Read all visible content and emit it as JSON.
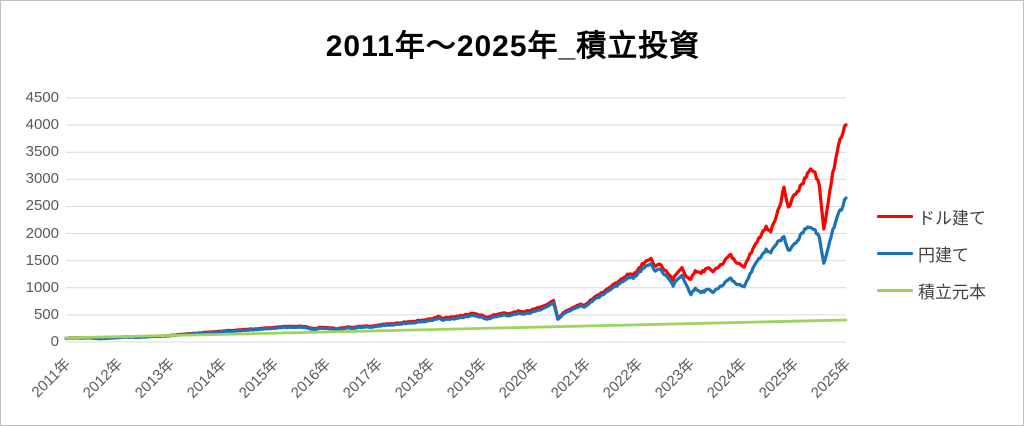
{
  "title": "2011年～2025年_積立投資",
  "colors": {
    "dollar": "#ff0000",
    "yen": "#1a72b8",
    "principal": "#9cd45e",
    "grid": "#d9d9d9",
    "axis_text": "#595959",
    "legend_text": "#404040"
  },
  "legend": [
    {
      "key": "dollar",
      "label": "ドル建て"
    },
    {
      "key": "yen",
      "label": "円建て"
    },
    {
      "key": "principal",
      "label": "積立元本"
    }
  ],
  "chart_data": {
    "type": "line",
    "title": "2011年～2025年_積立投資",
    "x_unit": "month",
    "x_start": "2011-01",
    "x_tick_labels": [
      "2011年",
      "2012年",
      "2013年",
      "2014年",
      "2015年",
      "2016年",
      "2017年",
      "2018年",
      "2019年",
      "2020年",
      "2021年",
      "2022年",
      "2023年",
      "2024年",
      "2025年",
      "2025年"
    ],
    "y_ticks": [
      0,
      500,
      1000,
      1500,
      2000,
      2500,
      3000,
      3500,
      4000,
      4500
    ],
    "ylim": [
      0,
      4500
    ],
    "grid": true,
    "legend_position": "right",
    "series": [
      {
        "key": "dollar",
        "name": "ドル建て",
        "color": "#ff0000",
        "values": [
          72,
          75,
          78,
          74,
          77,
          80,
          76,
          70,
          65,
          70,
          76,
          82,
          86,
          92,
          96,
          93,
          90,
          94,
          99,
          104,
          108,
          106,
          111,
          117,
          125,
          133,
          140,
          147,
          154,
          160,
          166,
          173,
          179,
          186,
          193,
          200,
          206,
          212,
          217,
          222,
          228,
          234,
          239,
          245,
          252,
          258,
          265,
          272,
          277,
          283,
          290,
          285,
          292,
          287,
          281,
          262,
          248,
          264,
          270,
          266,
          260,
          245,
          263,
          271,
          277,
          269,
          283,
          291,
          296,
          294,
          308,
          320,
          328,
          336,
          344,
          352,
          361,
          370,
          379,
          388,
          398,
          408,
          419,
          432,
          475,
          440,
          450,
          458,
          472,
          486,
          498,
          515,
          532,
          505,
          485,
          448,
          480,
          505,
          520,
          535,
          518,
          550,
          568,
          556,
          576,
          592,
          615,
          640,
          668,
          720,
          762,
          440,
          520,
          570,
          610,
          650,
          700,
          672,
          742,
          812,
          860,
          910,
          968,
          1026,
          1084,
          1135,
          1205,
          1262,
          1235,
          1322,
          1425,
          1482,
          1525,
          1385,
          1455,
          1335,
          1235,
          1155,
          1285,
          1385,
          1195,
          1165,
          1305,
          1265,
          1315,
          1365,
          1295,
          1375,
          1435,
          1535,
          1595,
          1495,
          1435,
          1395,
          1555,
          1705,
          1855,
          2005,
          2125,
          2045,
          2255,
          2505,
          2825,
          2485,
          2655,
          2765,
          2905,
          3055,
          3225,
          3145,
          2855,
          2085,
          2605,
          3105,
          3505,
          3805,
          4005
        ]
      },
      {
        "key": "yen",
        "name": "円建て",
        "color": "#1a72b8",
        "values": [
          70,
          72,
          75,
          71,
          74,
          76,
          72,
          66,
          61,
          66,
          72,
          78,
          82,
          87,
          91,
          88,
          85,
          89,
          94,
          99,
          103,
          101,
          106,
          112,
          119,
          126,
          133,
          139,
          146,
          151,
          157,
          163,
          169,
          175,
          182,
          188,
          193,
          198,
          203,
          208,
          213,
          219,
          224,
          230,
          236,
          242,
          249,
          255,
          260,
          266,
          272,
          267,
          274,
          269,
          263,
          246,
          233,
          248,
          254,
          250,
          244,
          230,
          247,
          254,
          260,
          252,
          266,
          273,
          278,
          276,
          289,
          300,
          307,
          314,
          321,
          329,
          337,
          345,
          354,
          362,
          371,
          380,
          390,
          402,
          440,
          408,
          417,
          424,
          437,
          450,
          461,
          477,
          492,
          467,
          449,
          415,
          444,
          467,
          481,
          495,
          479,
          509,
          526,
          514,
          533,
          548,
          569,
          592,
          630,
          680,
          718,
          425,
          498,
          545,
          583,
          620,
          668,
          641,
          708,
          774,
          818,
          866,
          920,
          975,
          1030,
          1078,
          1144,
          1198,
          1172,
          1254,
          1348,
          1392,
          1428,
          1300,
          1362,
          1250,
          1155,
          1040,
          1160,
          1240,
          1048,
          880,
          985,
          915,
          935,
          972,
          912,
          990,
          1040,
          1118,
          1165,
          1090,
          1052,
          1030,
          1185,
          1350,
          1495,
          1600,
          1705,
          1655,
          1782,
          1880,
          1922,
          1690,
          1765,
          1855,
          2005,
          2102,
          2140,
          2082,
          1905,
          1455,
          1755,
          2055,
          2305,
          2455,
          2655
        ]
      },
      {
        "key": "principal",
        "name": "積立元本",
        "color": "#9cd45e",
        "values_yearly": [
          75,
          97,
          119,
          141,
          163,
          185,
          207,
          229,
          251,
          273,
          295,
          317,
          339,
          361,
          383,
          405
        ]
      }
    ]
  }
}
